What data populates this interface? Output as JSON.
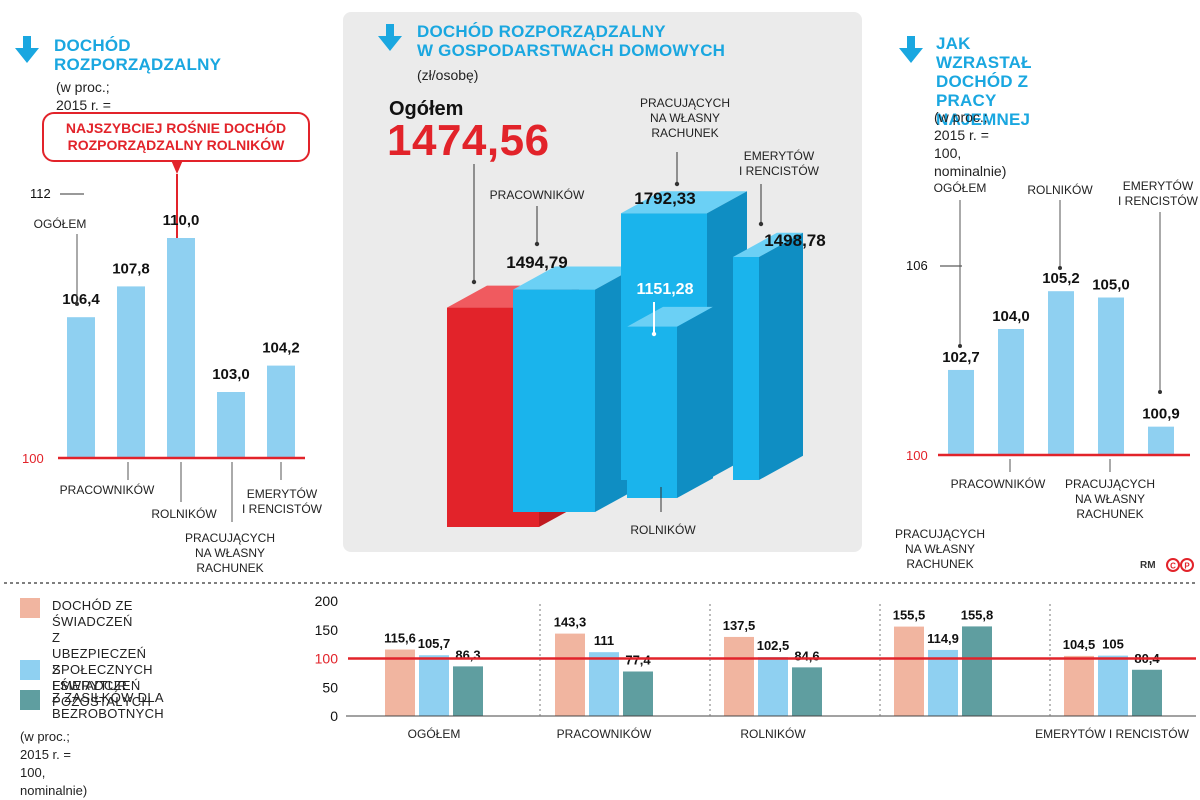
{
  "left_panel": {
    "title_line1": "DOCHÓD",
    "title_line2": "ROZPORZĄDZALNY",
    "subtitle": "(w proc.; 2015 r. = 100, nominalnie)",
    "callout_line1": "NAJSZYBCIEJ ROŚNIE DOCHÓD",
    "callout_line2": "ROZPORZĄDZALNY ROLNIKÓW"
  },
  "center_panel": {
    "title_line1": "DOCHÓD ROZPORZĄDZALNY",
    "title_line2": "W GOSPODARSTWACH DOMOWYCH",
    "subtitle": "(zł/osobę)",
    "total_label": "Ogółem",
    "total_value": "1474,56"
  },
  "right_panel": {
    "title_line1": "JAK WZRASTAŁ",
    "title_line2": "DOCHÓD Z PRACY",
    "title_line3": "NAJEMNEJ",
    "subtitle_line1": "(w proc.; 2015 r. = 100,",
    "subtitle_line2": "nominalnie)"
  },
  "bottom_panel": {
    "legend": [
      {
        "label_lines": [
          "DOCHÓD ZE ŚWIADCZEŃ",
          "Z UBEZPIECZEŃ SPOŁECZNYCH",
          "I ŚWIADCZEŃ POZOSTAŁYCH"
        ],
        "color": "#f1b5a0"
      },
      {
        "label_lines": [
          "Z EMERYTUR"
        ],
        "color": "#8fd0f1"
      },
      {
        "label_lines": [
          "Z ZASIŁKÓW DLA",
          "BEZROBOTNYCH"
        ],
        "color": "#5f9ea0"
      }
    ],
    "note": "(w proc.; 2015 r. = 100, nominalnie)"
  },
  "credit": "RM",
  "colors": {
    "blue": "#1aa7e0",
    "light_blue": "#8fd0f1",
    "red": "#e2232a",
    "salmon": "#f1b5a0",
    "teal": "#5f9ea0",
    "panel_bg": "#ebebeb"
  },
  "chart_data": [
    {
      "type": "bar",
      "title": "DOCHÓD ROZPORZĄDZALNY",
      "subtitle": "(w proc.; 2015 r. = 100, nominalnie)",
      "categories": [
        "OGÓŁEM",
        "PRACOWNIKÓW",
        "ROLNIKÓW",
        "PRACUJĄCYCH NA WŁASNY RACHUNEK",
        "EMERYTÓW I RENCISTÓW"
      ],
      "values": [
        106.4,
        107.8,
        110.0,
        103.0,
        104.2
      ],
      "labels": [
        "106,4",
        "107,8",
        "110,0",
        "103,0",
        "104,2"
      ],
      "ylim": [
        100,
        112
      ],
      "yticks": [
        "100",
        "112"
      ]
    },
    {
      "type": "bar",
      "title": "DOCHÓD ROZPORZĄDZALNY W GOSPODARSTWACH DOMOWYCH",
      "subtitle": "(zł/osobę)",
      "categories": [
        "Ogółem",
        "PRACOWNIKÓW",
        "ROLNIKÓW",
        "PRACUJĄCYCH NA WŁASNY RACHUNEK",
        "EMERYTÓW I RENCISTÓW"
      ],
      "values": [
        1474.56,
        1494.79,
        1151.28,
        1792.33,
        1498.78
      ],
      "labels": [
        "1474,56",
        "1494,79",
        "1151,28",
        "1792,33",
        "1498,78"
      ]
    },
    {
      "type": "bar",
      "title": "JAK WZRASTAŁ DOCHÓD Z PRACY NAJEMNEJ",
      "subtitle": "(w proc.; 2015 r. = 100, nominalnie)",
      "categories": [
        "OGÓŁEM",
        "PRACOWNIKÓW",
        "ROLNIKÓW",
        "PRACUJĄCYCH NA WŁASNY RACHUNEK",
        "EMERYTÓW I RENCISTÓW"
      ],
      "values": [
        102.7,
        104.0,
        105.2,
        105.0,
        100.9
      ],
      "labels": [
        "102,7",
        "104,0",
        "105,2",
        "105,0",
        "100,9"
      ],
      "ylim": [
        100,
        106
      ],
      "yticks": [
        "100",
        "106"
      ]
    },
    {
      "type": "bar",
      "categories": [
        "OGÓŁEM",
        "PRACOWNIKÓW",
        "ROLNIKÓW",
        "PRACUJĄCYCH NA WŁASNY RACHUNEK",
        "EMERYTÓW I RENCISTÓW"
      ],
      "series": [
        {
          "name": "DOCHÓD ZE ŚWIADCZEŃ Z UBEZPIECZEŃ SPOŁECZNYCH I ŚWIADCZEŃ POZOSTAŁYCH",
          "values": [
            115.6,
            143.3,
            137.5,
            155.5,
            104.5
          ],
          "labels": [
            "115,6",
            "143,3",
            "137,5",
            "155,5",
            "104,5"
          ]
        },
        {
          "name": "Z EMERYTUR",
          "values": [
            105.7,
            111,
            102.5,
            114.9,
            105
          ],
          "labels": [
            "105,7",
            "111",
            "102,5",
            "114,9",
            "105"
          ]
        },
        {
          "name": "Z ZASIŁKÓW DLA BEZROBOTNYCH",
          "values": [
            86.3,
            77.4,
            84.6,
            155.8,
            80.4
          ],
          "labels": [
            "86,3",
            "77,4",
            "84,6",
            "155,8",
            "80,4"
          ]
        }
      ],
      "ylim": [
        0,
        200
      ],
      "yticks": [
        "0",
        "50",
        "100",
        "150",
        "200"
      ],
      "reference_line": 100
    }
  ]
}
